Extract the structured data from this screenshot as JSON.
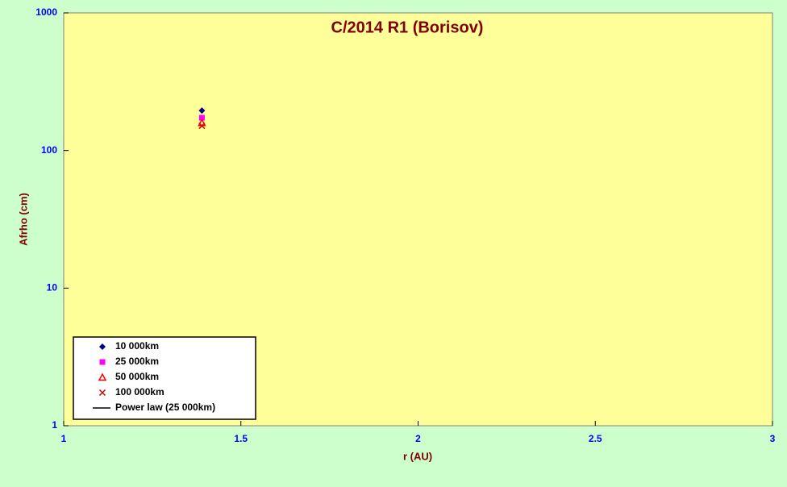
{
  "chart_data": {
    "type": "scatter",
    "title": "C/2014 R1 (Borisov)",
    "x_label": "r (AU)",
    "y_label": "Afrho (cm)",
    "x": [
      1.39
    ],
    "series": [
      {
        "name": "10 000km",
        "color": "#000080",
        "marker": "diamond",
        "values": [
          195
        ]
      },
      {
        "name": "25 000km",
        "color": "#ff00ff",
        "marker": "square",
        "values": [
          173
        ]
      },
      {
        "name": "50 000km",
        "color": "#ff0000",
        "marker": "triangle",
        "values": [
          159
        ]
      },
      {
        "name": "100 000km",
        "color": "#cc0000",
        "marker": "x",
        "values": [
          151
        ]
      },
      {
        "name": "Power law (25 000km)",
        "color": "#000000",
        "marker": "line",
        "values": [
          null
        ]
      }
    ],
    "xlim": [
      1,
      3
    ],
    "xticks": [
      1,
      1.5,
      2,
      2.5,
      3
    ],
    "ylim": [
      1,
      1000
    ],
    "yticks": [
      1,
      10,
      100,
      1000
    ],
    "y_scale": "log",
    "legend": "lower-left",
    "grid": false
  }
}
